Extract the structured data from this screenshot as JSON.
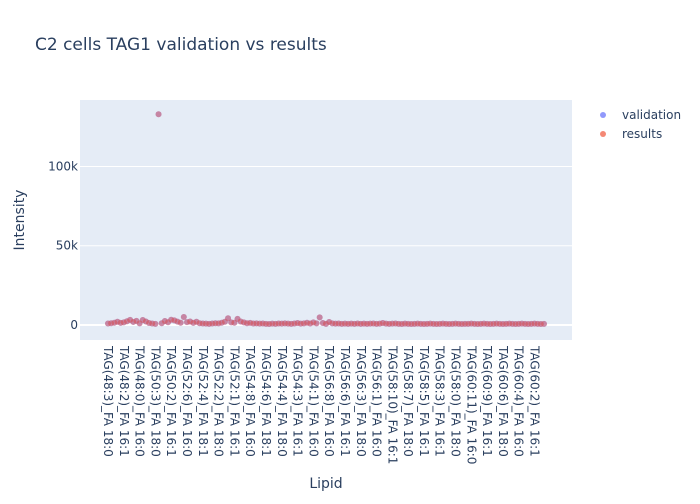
{
  "chart_data": {
    "type": "scatter",
    "title": "C2 cells TAG1 validation vs results",
    "xlabel": "Lipid",
    "ylabel": "Intensity",
    "ylim": [
      -9500,
      142000
    ],
    "y_ticks": [
      {
        "value": 0,
        "label": "0"
      },
      {
        "value": 50000,
        "label": "50k"
      },
      {
        "value": 100000,
        "label": "100k"
      }
    ],
    "grid": true,
    "legend_position": "top-right",
    "x_tick_labels": [
      "TAG(48:3)_FA 18:0",
      "TAG(48:2)_FA 16:1",
      "TAG(48:0)_FA 16:0",
      "TAG(50:3)_FA 18:0",
      "TAG(50:2)_FA 16:1",
      "TAG(52:6)_FA 16:0",
      "TAG(52:4)_FA 18:1",
      "TAG(52:2)_FA 18:0",
      "TAG(52:1)_FA 16:1",
      "TAG(54:8)_FA 16:0",
      "TAG(54:6)_FA 18:1",
      "TAG(54:4)_FA 18:0",
      "TAG(54:3)_FA 16:1",
      "TAG(54:1)_FA 16:0",
      "TAG(56:8)_FA 16:0",
      "TAG(56:6)_FA 16:1",
      "TAG(56:3)_FA 18:0",
      "TAG(56:1)_FA 16:0",
      "TAG(58:10)_FA 16:1",
      "TAG(58:7)_FA 18:0",
      "TAG(58:5)_FA 16:1",
      "TAG(58:3)_FA 16:1",
      "TAG(58:0)_FA 18:0",
      "TAG(60:11)_FA 16:0",
      "TAG(60:9)_FA 16:1",
      "TAG(60:6)_FA 18:0",
      "TAG(60:4)_FA 16:0",
      "TAG(60:2)_FA 16:1"
    ],
    "series": [
      {
        "name": "validation",
        "color": "#636efa",
        "values": [
          900,
          1100,
          1400,
          2000,
          1300,
          1600,
          2300,
          3200,
          1900,
          2600,
          1000,
          3100,
          2200,
          1200,
          900,
          700,
          133000,
          1100,
          2500,
          1700,
          3300,
          2900,
          2100,
          1400,
          5000,
          1800,
          2200,
          1300,
          2000,
          1100,
          900,
          800,
          700,
          900,
          1100,
          1000,
          1400,
          2000,
          4200,
          1600,
          1400,
          3800,
          2200,
          1600,
          1100,
          1300,
          900,
          1000,
          800,
          900,
          700,
          600,
          800,
          700,
          900,
          800,
          1000,
          800,
          700,
          900,
          1200,
          800,
          1000,
          1400,
          900,
          1600,
          1000,
          4800,
          1200,
          700,
          1900,
          1000,
          800,
          900,
          700,
          800,
          700,
          800,
          700,
          900,
          700,
          800,
          700,
          800,
          900,
          700,
          800,
          1200,
          800,
          700,
          800,
          900,
          700,
          600,
          800,
          700,
          600,
          700,
          800,
          700,
          600,
          700,
          800,
          700,
          600,
          700,
          800,
          700,
          600,
          700,
          800,
          700,
          600,
          700,
          700,
          800,
          700,
          600,
          700,
          800,
          700,
          600,
          700,
          800,
          700,
          600,
          700,
          800,
          700,
          600,
          700,
          800,
          700,
          600,
          700,
          800,
          700,
          600,
          700
        ]
      },
      {
        "name": "results",
        "color": "#ef553b",
        "values": [
          900,
          1100,
          1400,
          2000,
          1300,
          1600,
          2300,
          3200,
          1900,
          2600,
          1000,
          3100,
          2200,
          1200,
          900,
          700,
          133000,
          1100,
          2500,
          1700,
          3300,
          2900,
          2100,
          1400,
          5000,
          1800,
          2200,
          1300,
          2000,
          1100,
          900,
          800,
          700,
          900,
          1100,
          1000,
          1400,
          2000,
          4200,
          1600,
          1400,
          3800,
          2200,
          1600,
          1100,
          1300,
          900,
          1000,
          800,
          900,
          700,
          600,
          800,
          700,
          900,
          800,
          1000,
          800,
          700,
          900,
          1200,
          800,
          1000,
          1400,
          900,
          1600,
          1000,
          4800,
          1200,
          700,
          1900,
          1000,
          800,
          900,
          700,
          800,
          700,
          800,
          700,
          900,
          700,
          800,
          700,
          800,
          900,
          700,
          800,
          1200,
          800,
          700,
          800,
          900,
          700,
          600,
          800,
          700,
          600,
          700,
          800,
          700,
          600,
          700,
          800,
          700,
          600,
          700,
          800,
          700,
          600,
          700,
          800,
          700,
          600,
          700,
          700,
          800,
          700,
          600,
          700,
          800,
          700,
          600,
          700,
          800,
          700,
          600,
          700,
          800,
          700,
          600,
          700,
          800,
          700,
          600,
          700,
          800,
          700,
          600,
          700
        ]
      }
    ]
  }
}
